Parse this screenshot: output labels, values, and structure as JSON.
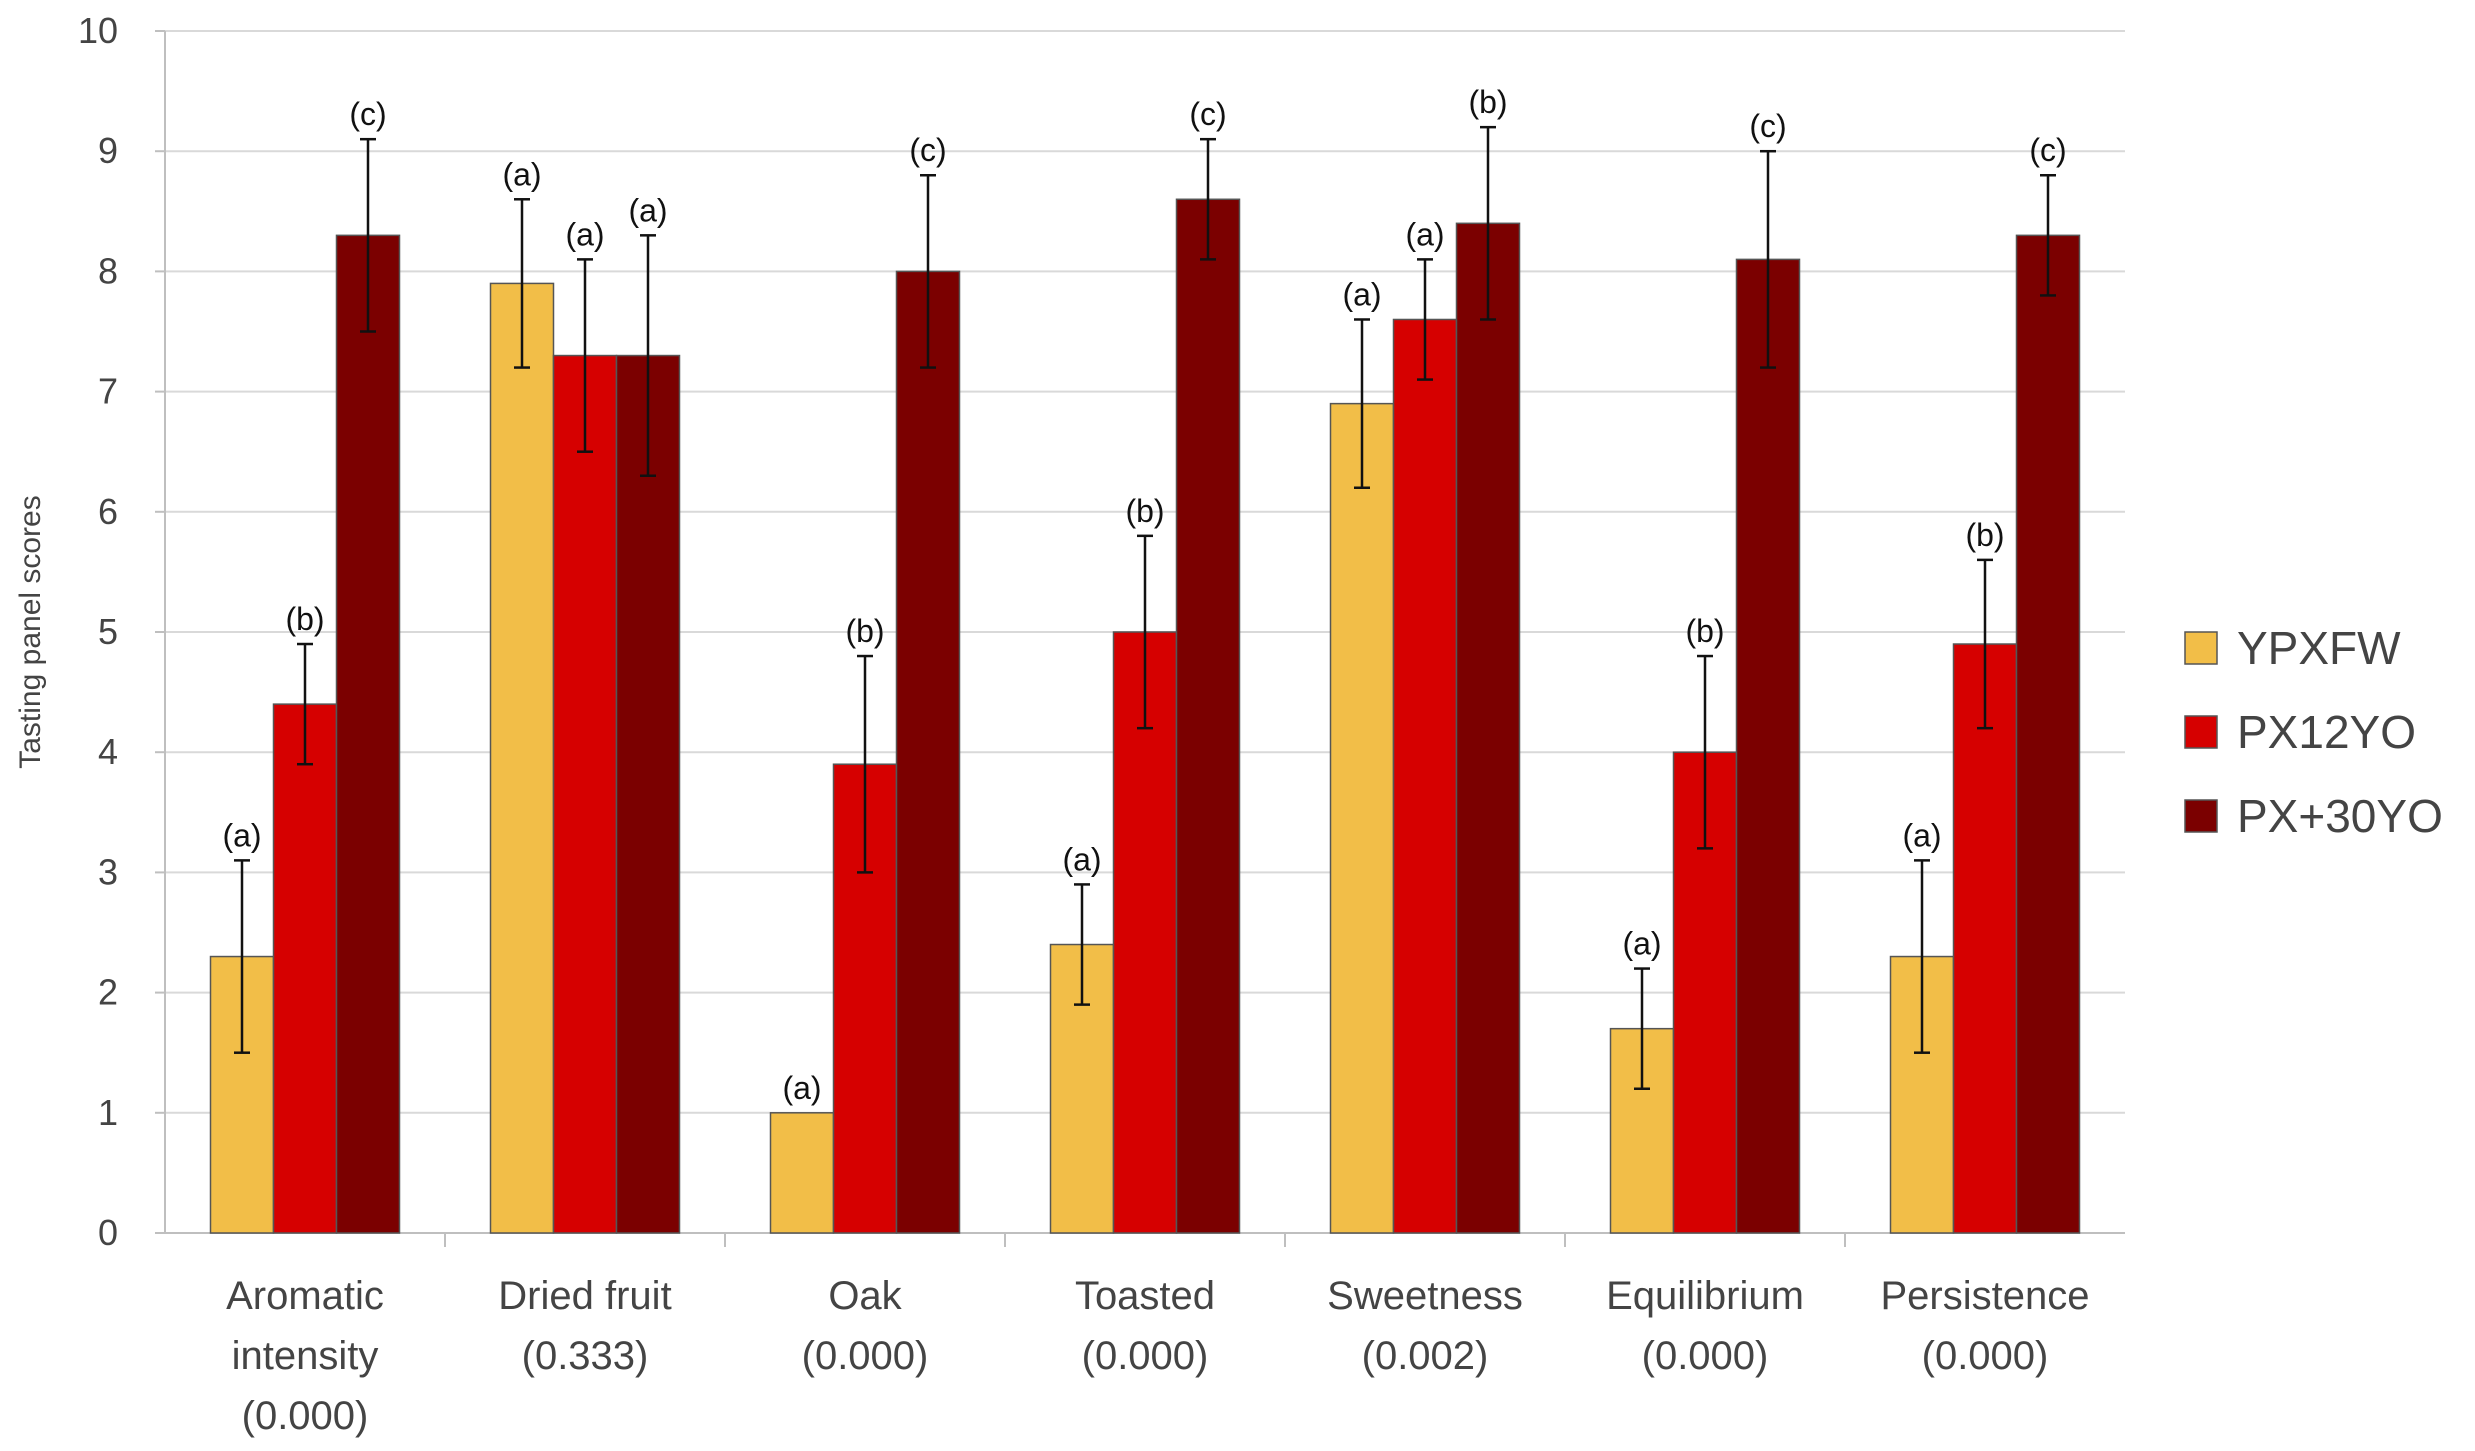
{
  "chart_data": {
    "type": "bar",
    "title": "",
    "xlabel": "",
    "ylabel": "Tasting panel scores",
    "ylim": [
      0,
      10
    ],
    "yticks": [
      "0",
      "1",
      "2",
      "3",
      "4",
      "5",
      "6",
      "7",
      "8",
      "9",
      "10"
    ],
    "grid": true,
    "legend_position": "right",
    "categories": [
      [
        "Aromatic",
        "intensity",
        "(0.000)"
      ],
      [
        "Dried fruit",
        "(0.333)"
      ],
      [
        "Oak",
        "(0.000)"
      ],
      [
        "Toasted",
        "(0.000)"
      ],
      [
        "Sweetness",
        "(0.002)"
      ],
      [
        "Equilibrium",
        "(0.000)"
      ],
      [
        "Persistence",
        "(0.000)"
      ]
    ],
    "series": [
      {
        "name": "YPXFW",
        "color": "#F2BE48",
        "values": [
          2.3,
          7.9,
          1.0,
          2.4,
          6.9,
          1.7,
          2.3
        ],
        "errors": [
          0.8,
          0.7,
          0.0,
          0.5,
          0.7,
          0.5,
          0.8
        ],
        "labels": [
          "(a)",
          "(a)",
          "(a)",
          "(a)",
          "(a)",
          "(a)",
          "(a)"
        ]
      },
      {
        "name": "PX12YO",
        "color": "#D60000",
        "values": [
          4.4,
          7.3,
          3.9,
          5.0,
          7.6,
          4.0,
          4.9
        ],
        "errors": [
          0.5,
          0.8,
          0.9,
          0.8,
          0.5,
          0.8,
          0.7
        ],
        "labels": [
          "(b)",
          "(a)",
          "(b)",
          "(b)",
          "(a)",
          "(b)",
          "(b)"
        ]
      },
      {
        "name": "PX+30YO",
        "color": "#7B0000",
        "values": [
          8.3,
          7.3,
          8.0,
          8.6,
          8.4,
          8.1,
          8.3
        ],
        "errors": [
          0.8,
          1.0,
          0.8,
          0.5,
          0.8,
          0.9,
          0.5
        ],
        "labels": [
          "(c)",
          "(a)",
          "(c)",
          "(c)",
          "(b)",
          "(c)",
          "(c)"
        ]
      }
    ]
  }
}
